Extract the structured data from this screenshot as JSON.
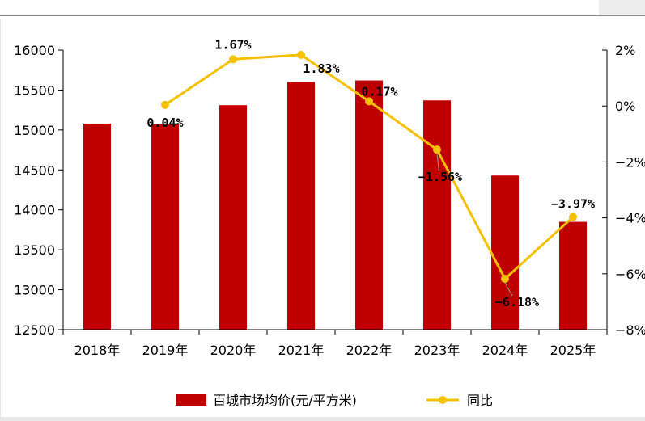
{
  "chart_data": {
    "type": "bar+line",
    "title": "",
    "categories": [
      "2018年",
      "2019年",
      "2020年",
      "2021年",
      "2022年",
      "2023年",
      "2024年",
      "2025年"
    ],
    "series": [
      {
        "name": "百城市场均价(元/平方米)",
        "kind": "bar",
        "axis": "left",
        "color": "#c00000",
        "values": [
          15080,
          15070,
          15310,
          15600,
          15620,
          15370,
          14430,
          13850
        ]
      },
      {
        "name": "同比",
        "kind": "line",
        "axis": "right",
        "color": "#f5c000",
        "unit": "%",
        "values": [
          null,
          0.04,
          1.67,
          1.83,
          0.17,
          -1.56,
          -6.18,
          -3.97
        ],
        "labels": [
          "",
          "0.04%",
          "1.67%",
          "1.83%",
          "0.17%",
          "−1.56%",
          "−6.18%",
          "−3.97%"
        ]
      }
    ],
    "y_left": {
      "min": 12500,
      "max": 16000,
      "step": 500,
      "ticks": [
        "12500",
        "13000",
        "13500",
        "14000",
        "14500",
        "15000",
        "15500",
        "16000"
      ]
    },
    "y_right": {
      "min": -8,
      "max": 2,
      "step": 2,
      "ticks": [
        "−8%",
        "−6%",
        "−4%",
        "−2%",
        "0%",
        "2%"
      ]
    },
    "legend": {
      "position": "bottom-center",
      "bar_label": "百城市场均价(元/平方米)",
      "line_label": "同比"
    }
  }
}
